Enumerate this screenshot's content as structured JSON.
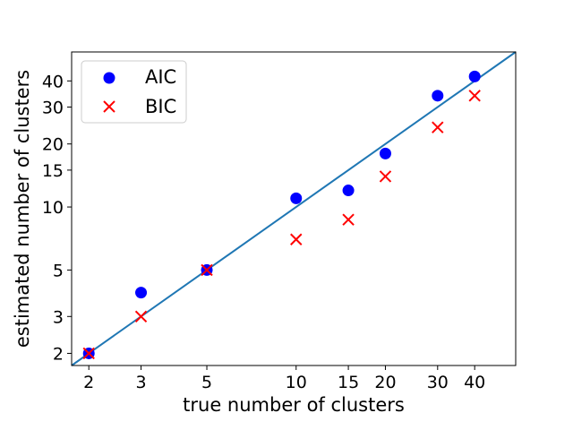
{
  "chart_data": {
    "type": "scatter",
    "title": "",
    "xlabel": "true number of clusters",
    "ylabel": "estimated number of clusters",
    "xscale": "log",
    "yscale": "log",
    "xlim": [
      1.75,
      55
    ],
    "ylim": [
      1.75,
      55
    ],
    "x_ticks": [
      2,
      3,
      5,
      10,
      15,
      20,
      30,
      40
    ],
    "y_ticks": [
      2,
      3,
      5,
      10,
      15,
      20,
      30,
      40
    ],
    "grid": false,
    "legend_position": "top-left",
    "reference_line": {
      "type": "identity",
      "color": "#1f77b4"
    },
    "series": [
      {
        "name": "AIC",
        "marker": "circle",
        "color": "#0000ff",
        "points": [
          {
            "x": 2,
            "y": 2
          },
          {
            "x": 3,
            "y": 3.9
          },
          {
            "x": 5,
            "y": 5
          },
          {
            "x": 10,
            "y": 11
          },
          {
            "x": 15,
            "y": 12
          },
          {
            "x": 20,
            "y": 18
          },
          {
            "x": 30,
            "y": 34
          },
          {
            "x": 40,
            "y": 42
          }
        ]
      },
      {
        "name": "BIC",
        "marker": "x",
        "color": "#ff0000",
        "points": [
          {
            "x": 2,
            "y": 2
          },
          {
            "x": 3,
            "y": 3
          },
          {
            "x": 5,
            "y": 5
          },
          {
            "x": 10,
            "y": 7
          },
          {
            "x": 15,
            "y": 8.7
          },
          {
            "x": 20,
            "y": 14
          },
          {
            "x": 30,
            "y": 24
          },
          {
            "x": 40,
            "y": 34
          }
        ]
      }
    ]
  }
}
